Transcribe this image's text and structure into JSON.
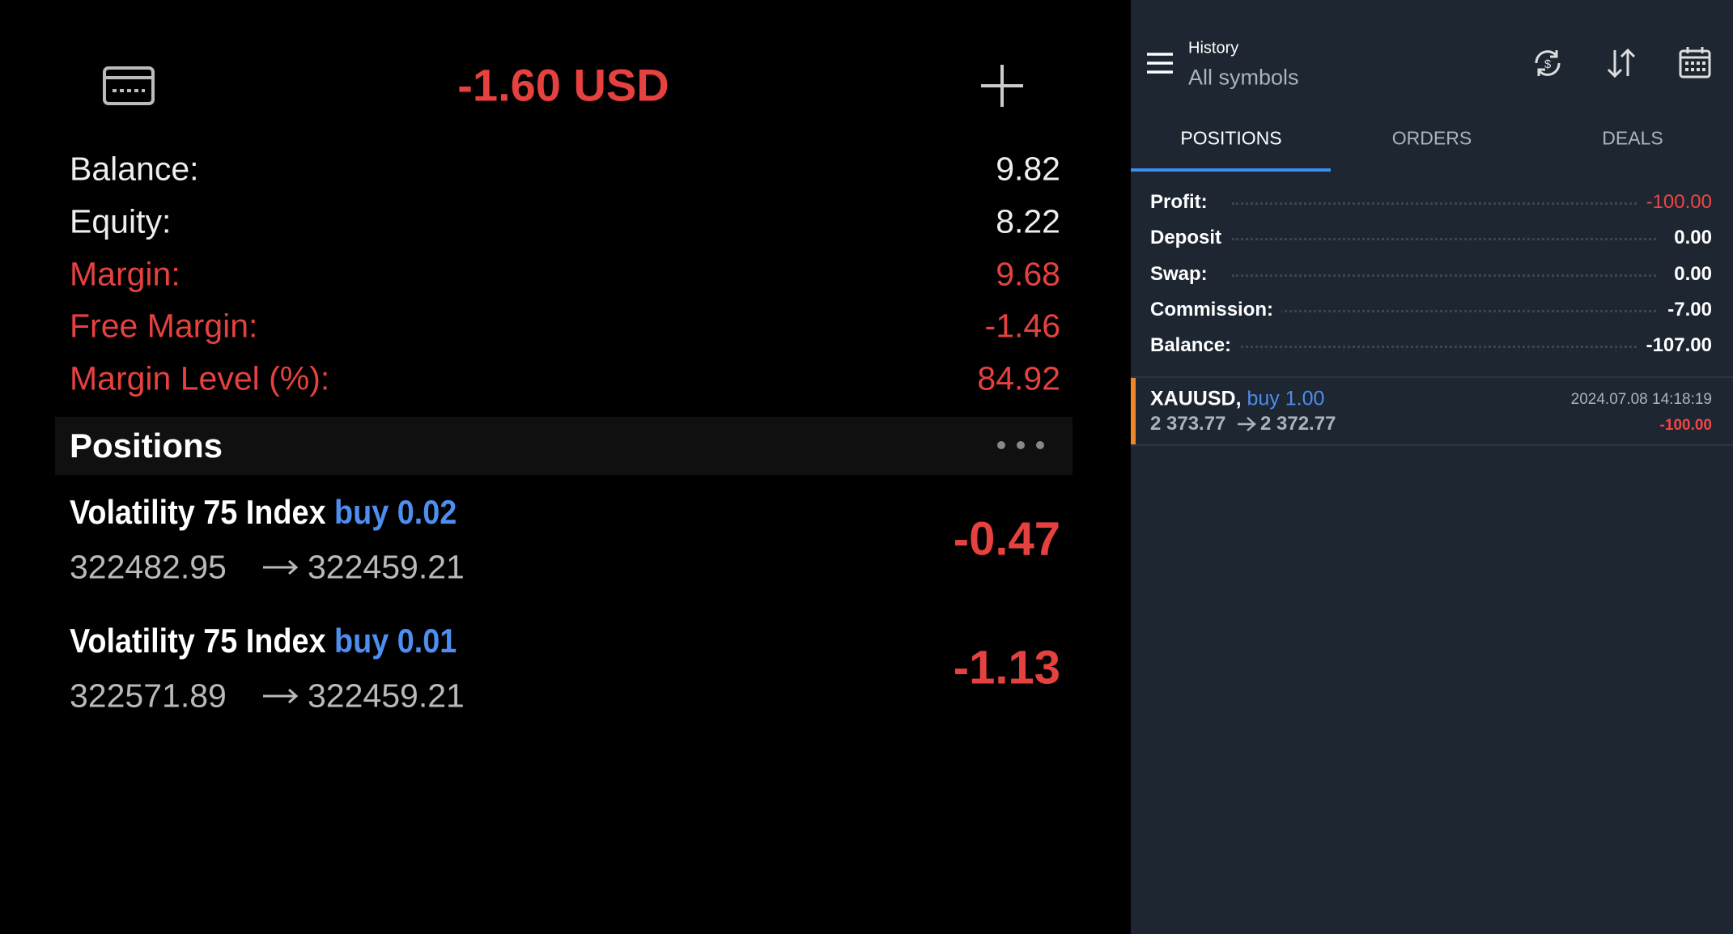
{
  "left_panel": {
    "total": "-1.60 USD",
    "account": [
      {
        "label": "Balance:",
        "value": "9.82"
      },
      {
        "label": "Equity:",
        "value": "8.22"
      },
      {
        "label": "Margin:",
        "value": "9.68"
      },
      {
        "label": "Free Margin:",
        "value": "-1.46"
      },
      {
        "label": "Margin Level (%):",
        "value": "84.92"
      }
    ],
    "positions_title": "Positions",
    "positions": [
      {
        "symbol": "Volatility 75 Index",
        "side": "buy 0.02",
        "open_price": "322482.95",
        "close_price": "322459.21",
        "profit": "-0.47"
      },
      {
        "symbol": "Volatility 75 Index",
        "side": "buy 0.01",
        "open_price": "322571.89",
        "close_price": "322459.21",
        "profit": "-1.13"
      }
    ]
  },
  "right_panel": {
    "header": {
      "title": "History",
      "subtitle": "All symbols"
    },
    "tabs": [
      "POSITIONS",
      "ORDERS",
      "DEALS"
    ],
    "summary": [
      {
        "label": "Profit:",
        "value": "-100.00"
      },
      {
        "label": "Deposit",
        "value": "0.00"
      },
      {
        "label": "Swap:",
        "value": "0.00"
      },
      {
        "label": "Commission:",
        "value": "-7.00"
      },
      {
        "label": "Balance:",
        "value": "-107.00"
      }
    ],
    "deals": [
      {
        "symbol": "XAUUSD,",
        "side": "buy 1.00",
        "open_price": "2 373.77",
        "close_price": "2 372.77",
        "time": "2024.07.08 14:18:19",
        "profit": "-100.00"
      }
    ]
  }
}
